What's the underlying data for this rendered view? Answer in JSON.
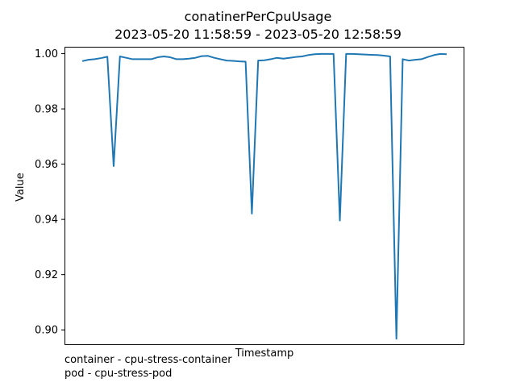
{
  "chart_data": {
    "type": "line",
    "title": "conatinerPerCpuUsage",
    "subtitle": "2023-05-20 11:58:59 - 2023-05-20 12:58:59",
    "xlabel": "Timestamp",
    "ylabel": "Value",
    "ylim": [
      0.8945,
      1.0025
    ],
    "yticks": [
      "0.90",
      "0.92",
      "0.94",
      "0.96",
      "0.98",
      "1.00"
    ],
    "grid": false,
    "x_tick_labels": [],
    "series": [
      {
        "color": "#1f77b4",
        "values": [
          0.9973,
          0.9978,
          0.998,
          0.9984,
          0.9989,
          0.9593,
          0.999,
          0.9985,
          0.998,
          0.998,
          0.998,
          0.998,
          0.9987,
          0.999,
          0.9987,
          0.998,
          0.998,
          0.9982,
          0.9985,
          0.9991,
          0.9992,
          0.9985,
          0.998,
          0.9975,
          0.9974,
          0.9972,
          0.9971,
          0.9421,
          0.9975,
          0.9976,
          0.998,
          0.9985,
          0.9982,
          0.9985,
          0.9988,
          0.999,
          0.9995,
          0.9998,
          0.9999,
          0.9999,
          0.9999,
          0.9396,
          0.9999,
          0.9999,
          0.9998,
          0.9997,
          0.9996,
          0.9995,
          0.9993,
          0.999,
          0.8968,
          0.998,
          0.9975,
          0.9978,
          0.998,
          0.9988,
          0.9995,
          0.9999,
          0.9998
        ]
      }
    ]
  },
  "legend_notes": {
    "container": "container - cpu-stress-container",
    "pod": "pod - cpu-stress-pod"
  }
}
